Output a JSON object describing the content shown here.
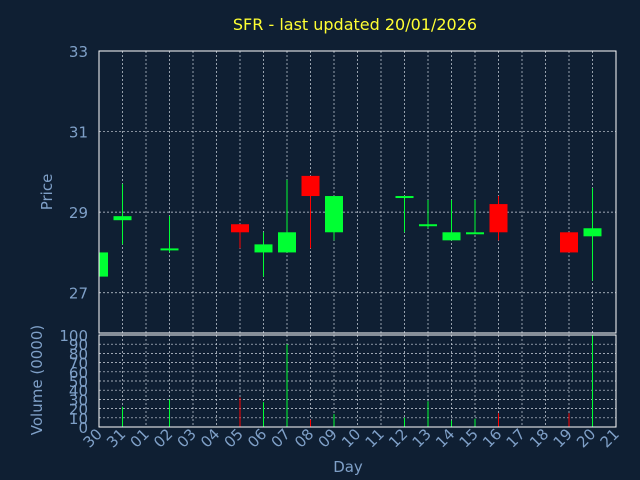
{
  "colors": {
    "background": "#0f1f33",
    "plot_background": "#0f1f33",
    "frame": "#ffffff",
    "grid": "#cfd6e0",
    "title": "#ffff33",
    "axis_text": "#7fa0c8",
    "up": "#00ff33",
    "down": "#ff0000"
  },
  "chart_data": [
    {
      "type": "candlestick",
      "title": "SFR - last updated 20/01/2026",
      "ylabel": "Price",
      "ylim": [
        26,
        33
      ],
      "yticks": [
        27,
        29,
        31,
        33
      ],
      "grid": true,
      "categories": [
        "30",
        "31",
        "01",
        "02",
        "03",
        "04",
        "05",
        "06",
        "07",
        "08",
        "09",
        "10",
        "11",
        "12",
        "13",
        "14",
        "15",
        "16",
        "17",
        "18",
        "19",
        "20",
        "21"
      ],
      "candles": [
        {
          "x": "30",
          "open": 27.4,
          "high": 28.0,
          "low": 27.4,
          "close": 28.0
        },
        {
          "x": "31",
          "open": 28.8,
          "high": 29.7,
          "low": 28.2,
          "close": 28.9
        },
        {
          "x": "02",
          "open": 28.1,
          "high": 28.9,
          "low": 28.0,
          "close": 28.1
        },
        {
          "x": "05",
          "open": 28.7,
          "high": 28.7,
          "low": 28.1,
          "close": 28.5
        },
        {
          "x": "06",
          "open": 28.0,
          "high": 28.5,
          "low": 27.4,
          "close": 28.2
        },
        {
          "x": "07",
          "open": 28.0,
          "high": 29.8,
          "low": 28.0,
          "close": 28.5
        },
        {
          "x": "08",
          "open": 29.9,
          "high": 29.9,
          "low": 28.1,
          "close": 29.4
        },
        {
          "x": "09",
          "open": 28.5,
          "high": 29.4,
          "low": 28.3,
          "close": 29.4
        },
        {
          "x": "12",
          "open": 29.4,
          "high": 29.4,
          "low": 28.5,
          "close": 29.4
        },
        {
          "x": "13",
          "open": 28.7,
          "high": 29.3,
          "low": 28.6,
          "close": 28.7
        },
        {
          "x": "14",
          "open": 28.3,
          "high": 29.3,
          "low": 28.3,
          "close": 28.5
        },
        {
          "x": "15",
          "open": 28.5,
          "high": 29.3,
          "low": 28.5,
          "close": 28.5
        },
        {
          "x": "16",
          "open": 29.2,
          "high": 29.4,
          "low": 28.3,
          "close": 28.5
        },
        {
          "x": "19",
          "open": 28.5,
          "high": 28.5,
          "low": 28.0,
          "close": 28.0
        },
        {
          "x": "20",
          "open": 28.4,
          "high": 29.6,
          "low": 27.3,
          "close": 28.6
        }
      ]
    },
    {
      "type": "bar",
      "ylabel": "Volume (0000)",
      "xlabel": "Day",
      "ylim": [
        0,
        100
      ],
      "yticks": [
        0,
        10,
        20,
        30,
        40,
        50,
        60,
        70,
        80,
        90,
        100
      ],
      "grid": true,
      "categories": [
        "30",
        "31",
        "01",
        "02",
        "03",
        "04",
        "05",
        "06",
        "07",
        "08",
        "09",
        "10",
        "11",
        "12",
        "13",
        "14",
        "15",
        "16",
        "17",
        "18",
        "19",
        "20",
        "21"
      ],
      "bars": [
        {
          "x": "31",
          "value": 22,
          "direction": "up"
        },
        {
          "x": "02",
          "value": 30,
          "direction": "up"
        },
        {
          "x": "05",
          "value": 32,
          "direction": "down"
        },
        {
          "x": "06",
          "value": 27,
          "direction": "up"
        },
        {
          "x": "07",
          "value": 90,
          "direction": "up"
        },
        {
          "x": "08",
          "value": 8,
          "direction": "down"
        },
        {
          "x": "09",
          "value": 14,
          "direction": "up"
        },
        {
          "x": "12",
          "value": 10,
          "direction": "up"
        },
        {
          "x": "13",
          "value": 28,
          "direction": "up"
        },
        {
          "x": "14",
          "value": 7,
          "direction": "up"
        },
        {
          "x": "15",
          "value": 9,
          "direction": "up"
        },
        {
          "x": "16",
          "value": 15,
          "direction": "down"
        },
        {
          "x": "19",
          "value": 15,
          "direction": "down"
        },
        {
          "x": "20",
          "value": 100,
          "direction": "up"
        }
      ]
    }
  ]
}
